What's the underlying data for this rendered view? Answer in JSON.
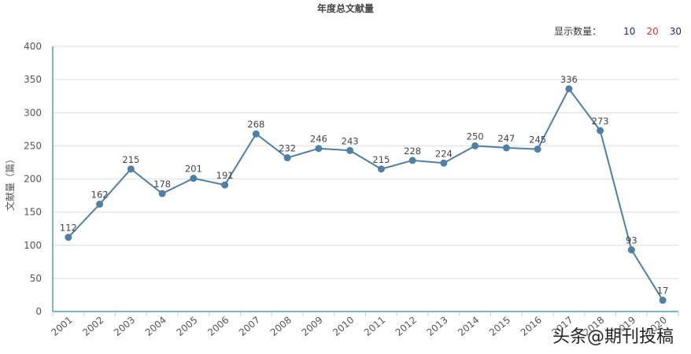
{
  "chart_data": {
    "type": "line",
    "title": "年度总文献量",
    "xlabel": "",
    "ylabel": "文献量（篇）",
    "categories": [
      "2001",
      "2002",
      "2003",
      "2004",
      "2005",
      "2006",
      "2007",
      "2008",
      "2009",
      "2010",
      "2011",
      "2012",
      "2013",
      "2014",
      "2015",
      "2016",
      "2017",
      "2018",
      "2019",
      "2020"
    ],
    "series": [
      {
        "name": "文献量",
        "values": [
          112,
          162,
          215,
          178,
          201,
          191,
          268,
          232,
          246,
          243,
          215,
          228,
          224,
          250,
          247,
          245,
          336,
          273,
          93,
          17
        ],
        "color": "#4e7fa5"
      }
    ],
    "ylim": [
      0,
      400
    ],
    "yticks": [
      0,
      50,
      100,
      150,
      200,
      250,
      300,
      350,
      400
    ],
    "grid": true,
    "data_labels": true,
    "legend": null
  },
  "controls": {
    "count_label": "显示数量：",
    "options": [
      {
        "label": "10",
        "color": "#1a2a7a"
      },
      {
        "label": "20",
        "color": "#d9383a"
      },
      {
        "label": "30",
        "color": "#1a2a7a"
      }
    ]
  },
  "watermark": "头条@期刊投稿",
  "colors": {
    "line": "#4e7fa5",
    "axis": "#7ab8c8",
    "grid": "#e6e6e6",
    "text": "#555555"
  }
}
